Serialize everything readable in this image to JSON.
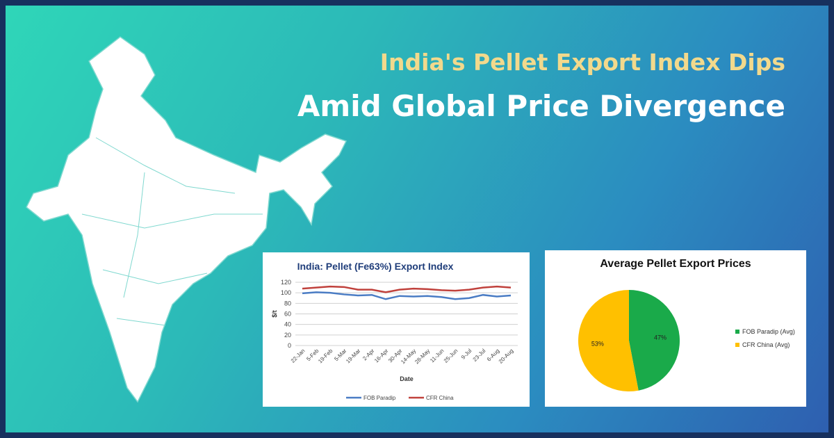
{
  "header": {
    "title_line1": "India's Pellet Export Index Dips",
    "title_line2": "Amid Global Price Divergence"
  },
  "chart_data": [
    {
      "type": "line",
      "title": "India: Pellet (Fe63%) Export Index",
      "y_label": "$/t",
      "x_label": "Date",
      "categories": [
        "22-Jan",
        "5-Feb",
        "19-Feb",
        "5-Mar",
        "19-Mar",
        "2-Apr",
        "16-Apr",
        "30-Apr",
        "14-May",
        "28-May",
        "11-Jun",
        "25-Jun",
        "9-Jul",
        "23-Jul",
        "6-Aug",
        "20-Aug"
      ],
      "series": [
        {
          "name": "FOB Paradip",
          "color": "#4a7cc4",
          "values": [
            99,
            101,
            100,
            97,
            95,
            96,
            88,
            94,
            93,
            94,
            92,
            88,
            90,
            96,
            93,
            95
          ]
        },
        {
          "name": "CFR China",
          "color": "#c0413c",
          "values": [
            108,
            110,
            112,
            111,
            106,
            106,
            101,
            106,
            108,
            107,
            105,
            104,
            106,
            110,
            112,
            110
          ]
        }
      ],
      "ylim": [
        0,
        120
      ],
      "yticks": [
        0,
        20,
        40,
        60,
        80,
        100,
        120
      ],
      "grid": true,
      "legend": "bottom"
    },
    {
      "type": "pie",
      "title": "Average Pellet Export Prices",
      "categories": [
        "FOB Paradip (Avg)",
        "CFR China (Avg)"
      ],
      "values": [
        47,
        53
      ],
      "value_labels": [
        "47%",
        "53%"
      ],
      "colors": [
        "#1aaa4a",
        "#ffc000"
      ],
      "legend": "right"
    }
  ]
}
